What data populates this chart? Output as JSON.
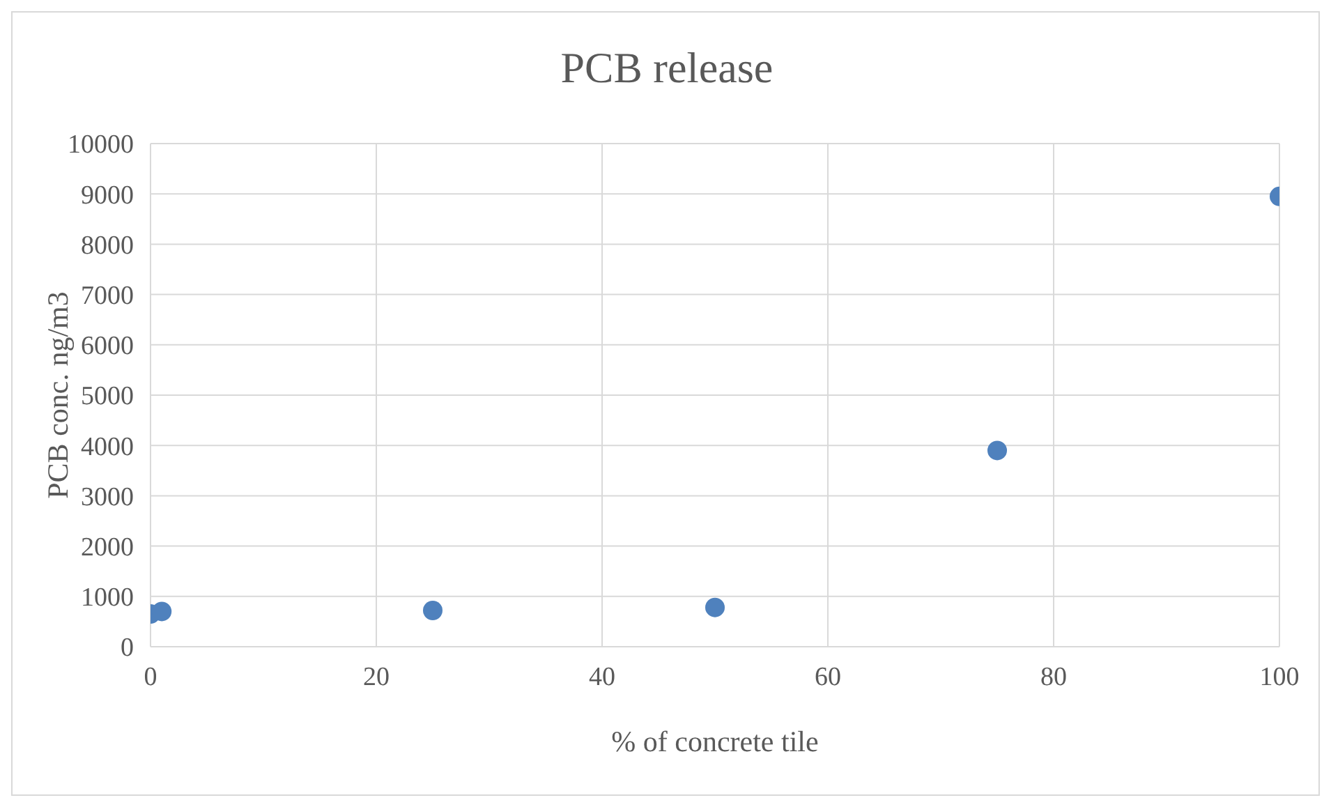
{
  "chart_data": {
    "type": "scatter",
    "title": "PCB release",
    "xlabel": "% of concrete tile",
    "ylabel": "PCB conc. ng/m3",
    "x": [
      0,
      1,
      25,
      50,
      75,
      100
    ],
    "series": [
      {
        "color": "#4f81bd",
        "values": [
          650,
          700,
          720,
          780,
          3900,
          8950
        ]
      }
    ],
    "xlim": [
      0,
      100
    ],
    "xticks": [
      0,
      20,
      40,
      60,
      80,
      100
    ],
    "ylim": [
      0,
      10000
    ],
    "yticks": [
      0,
      1000,
      2000,
      3000,
      4000,
      5000,
      6000,
      7000,
      8000,
      9000,
      10000
    ],
    "grid": true,
    "marker": "circle"
  }
}
